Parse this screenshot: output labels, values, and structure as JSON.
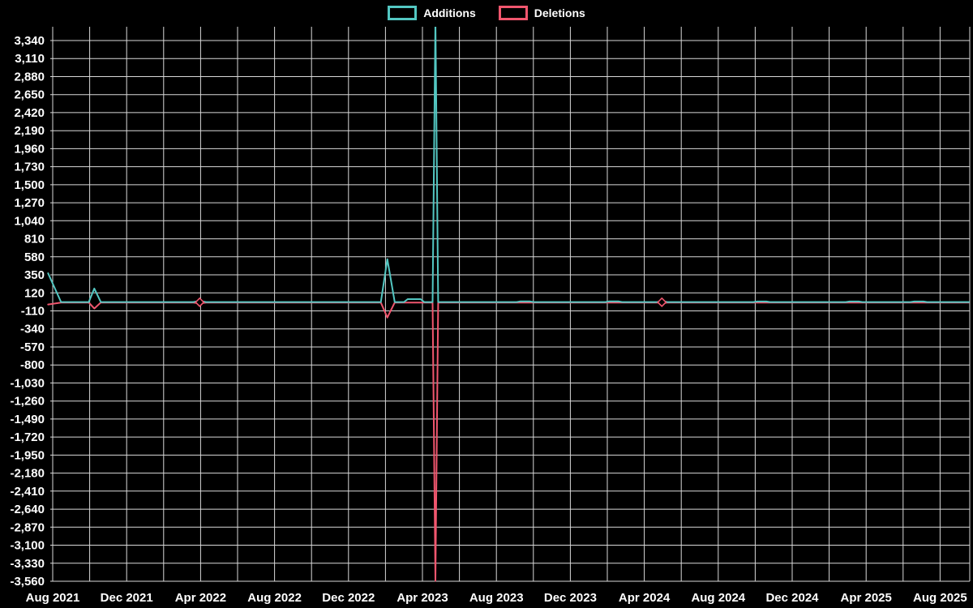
{
  "legend": {
    "items": [
      {
        "label": "Additions",
        "color": "#53c7c2"
      },
      {
        "label": "Deletions",
        "color": "#f0566e"
      }
    ]
  },
  "chart_data": {
    "type": "line",
    "title": "",
    "background": "#000000",
    "grid": {
      "color": "#d9d9d9",
      "vertical_every_months": 2
    },
    "y_axis": {
      "max": 3340,
      "min": -3560,
      "step": 230,
      "tick_labels": [
        "3,340",
        "3,110",
        "2,880",
        "2,650",
        "2,420",
        "2,190",
        "1,960",
        "1,730",
        "1,500",
        "1,270",
        "1,040",
        "810",
        "580",
        "350",
        "120",
        "-110",
        "-340",
        "-570",
        "-800",
        "-1,030",
        "-1,260",
        "-1,490",
        "-1,720",
        "-1,950",
        "-2,180",
        "-2,410",
        "-2,640",
        "-2,870",
        "-3,100",
        "-3,330",
        "-3,560"
      ]
    },
    "x_axis": {
      "tick_label_texts": [
        "Aug 2021",
        "Dec 2021",
        "Apr 2022",
        "Aug 2022",
        "Dec 2022",
        "Apr 2023",
        "Aug 2023",
        "Dec 2023",
        "Apr 2024",
        "Aug 2024",
        "Dec 2024",
        "Apr 2025",
        "Aug 2025"
      ],
      "tick_label_months": [
        0,
        4,
        8,
        12,
        16,
        20,
        24,
        28,
        32,
        36,
        40,
        44,
        48
      ],
      "months_note": "month offset 0 = Aug 2021"
    },
    "series": [
      {
        "name": "Deletions",
        "color": "#f0566e",
        "points": [
          [
            -0.25,
            -28
          ],
          [
            0.45,
            -3
          ],
          [
            1.95,
            -3
          ],
          [
            2.25,
            -80
          ],
          [
            2.6,
            -3
          ],
          [
            7.6,
            -3
          ],
          [
            7.95,
            -14
          ],
          [
            8.3,
            -3
          ],
          [
            17.75,
            -3
          ],
          [
            18.1,
            -195
          ],
          [
            18.5,
            -3
          ],
          [
            20.55,
            -3
          ],
          [
            20.7,
            -3555
          ],
          [
            20.85,
            -3
          ],
          [
            32.7,
            -3
          ],
          [
            32.95,
            -16
          ],
          [
            33.25,
            -3
          ],
          [
            49.6,
            -3
          ]
        ]
      },
      {
        "name": "Additions",
        "color": "#53c7c2",
        "points": [
          [
            -0.25,
            370
          ],
          [
            0.45,
            3
          ],
          [
            1.95,
            3
          ],
          [
            2.25,
            175
          ],
          [
            2.6,
            3
          ],
          [
            7.6,
            3
          ],
          [
            7.95,
            18
          ],
          [
            8.3,
            3
          ],
          [
            17.75,
            3
          ],
          [
            18.1,
            550
          ],
          [
            18.5,
            3
          ],
          [
            19.0,
            3
          ],
          [
            19.2,
            40
          ],
          [
            19.9,
            40
          ],
          [
            20.1,
            3
          ],
          [
            20.55,
            3
          ],
          [
            20.7,
            3620
          ],
          [
            20.85,
            3
          ],
          [
            25.1,
            3
          ],
          [
            25.3,
            12
          ],
          [
            25.8,
            12
          ],
          [
            26.0,
            3
          ],
          [
            29.9,
            3
          ],
          [
            30.1,
            12
          ],
          [
            30.6,
            12
          ],
          [
            30.8,
            3
          ],
          [
            32.7,
            3
          ],
          [
            32.95,
            18
          ],
          [
            33.25,
            3
          ],
          [
            37.9,
            3
          ],
          [
            38.1,
            10
          ],
          [
            38.6,
            10
          ],
          [
            38.8,
            3
          ],
          [
            42.9,
            3
          ],
          [
            43.1,
            10
          ],
          [
            43.6,
            10
          ],
          [
            43.8,
            3
          ],
          [
            46.4,
            3
          ],
          [
            46.6,
            10
          ],
          [
            47.1,
            10
          ],
          [
            47.3,
            3
          ],
          [
            49.6,
            3
          ]
        ]
      }
    ],
    "markers": [
      {
        "month": 7.95,
        "value": 0,
        "color": "#f0566e",
        "shape": "diamond"
      },
      {
        "month": 32.95,
        "value": 0,
        "color": "#f0566e",
        "shape": "diamond"
      }
    ]
  }
}
